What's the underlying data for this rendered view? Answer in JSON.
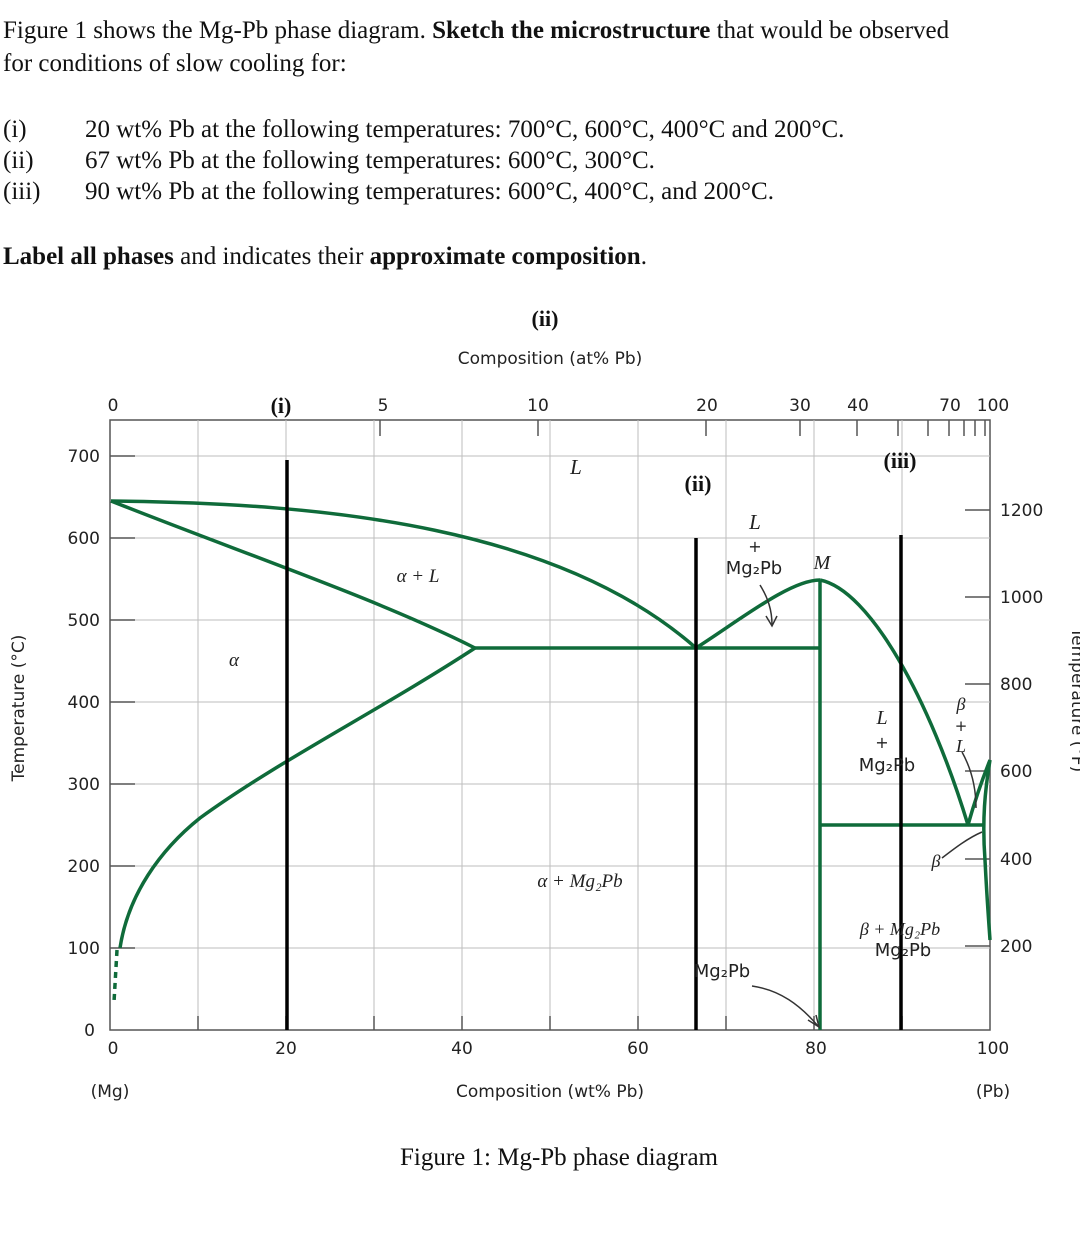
{
  "question": {
    "intro_part1": "Figure 1 shows the Mg-Pb phase diagram. ",
    "intro_bold": "Sketch the microstructure",
    "intro_part2": " that would be observed",
    "intro_line2": "for conditions of slow cooling for:",
    "items": [
      {
        "num": "(i)",
        "text": "20 wt% Pb at the following temperatures: 700°C, 600°C, 400°C and 200°C."
      },
      {
        "num": "(ii)",
        "text": "67 wt% Pb at the following temperatures: 600°C, 300°C."
      },
      {
        "num": "(iii)",
        "text": "90 wt% Pb at the following temperatures: 600°C, 400°C, and 200°C."
      }
    ],
    "label_bold1": "Label all phases",
    "label_mid": " and indicates their ",
    "label_bold2": "approximate composition",
    "label_end": "."
  },
  "figure_caption": "Figure 1: Mg-Pb phase diagram",
  "diagram": {
    "top_axis_title": "Composition (at% Pb)",
    "top_ticks": [
      "0",
      "5",
      "10",
      "20",
      "30",
      "40",
      "70",
      "100"
    ],
    "bottom_axis_title": "Composition (wt% Pb)",
    "bottom_ticks": [
      "0",
      "20",
      "40",
      "60",
      "80",
      "100"
    ],
    "left_axis_title": "Temperature (°C)",
    "left_ticks": [
      "0",
      "100",
      "200",
      "300",
      "400",
      "500",
      "600",
      "700"
    ],
    "left_corner_zero": "0",
    "right_ticks": [
      "200",
      "400",
      "600",
      "800",
      "1000",
      "1200"
    ],
    "right_axis_title": "Temperature (°F)",
    "end_labels": {
      "left": "(Mg)",
      "right": "(Pb)"
    },
    "markers": {
      "i": "(i)",
      "ii_top": "(ii)",
      "ii": "(ii)",
      "iii": "(iii)"
    },
    "regions": {
      "L": "L",
      "alpha_L": "α + L",
      "alpha": "α",
      "L_plus": "+",
      "mg2pb": "Mg₂Pb",
      "M": "M",
      "alpha_mg2pb": "α + Mg₂Pb",
      "mg2pb_bottom": "Mg₂Pb",
      "beta": "β",
      "beta_L_plus": "+",
      "beta_mg2pb": "β + Mg₂Pb",
      "beta_bottom": "β"
    },
    "line_color": "#0f6b3a",
    "marker_color": "#000000",
    "grid_color": "#bdbdbd"
  }
}
